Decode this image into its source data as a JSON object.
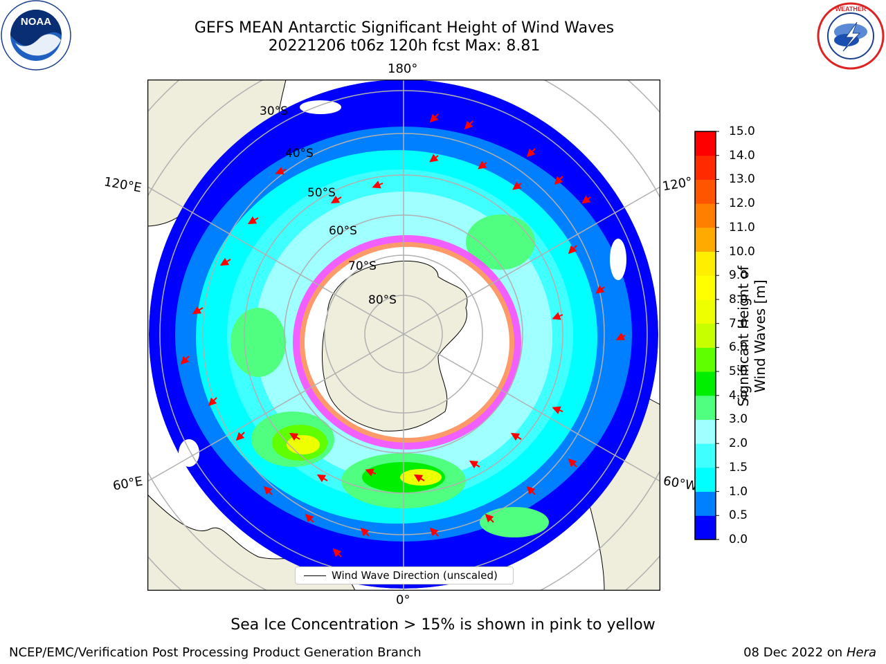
{
  "header": {
    "title_line1": "GEFS MEAN Antarctic Significant Height of Wind Waves",
    "title_line2": "20221206 t06z 120h fcst   Max: 8.81"
  },
  "logos": {
    "left": {
      "text": "NOAA",
      "ring_text": "NATIONAL OCEANIC AND ATMOSPHERIC ADMINISTRATION · U.S. DEPARTMENT OF COMMERCE"
    },
    "right": {
      "ring_text": "NATIONAL WEATHER SERVICE"
    }
  },
  "map": {
    "longitude_labels": {
      "top": "180°",
      "bottom": "0°",
      "upper_left": "120°E",
      "upper_right": "120°",
      "lower_left": "60°E",
      "lower_right": "60°W"
    },
    "latitude_labels": [
      "30°S",
      "40°S",
      "50°S",
      "60°S",
      "70°S",
      "80°S"
    ],
    "legend": "Wind Wave Direction (unscaled)",
    "colors": {
      "ocean_deep": "#0000ff",
      "land": "#efeddc",
      "sea_ice": "#ffffff",
      "ice_edge_pink": "#ff44ff",
      "ice_edge_orange": "#ffaa44",
      "arrow": "#ff0000",
      "graticule": "#b0b0b0"
    }
  },
  "colorbar": {
    "title": "Significant Height of Wind Waves [m]",
    "ticks": [
      "0.0",
      "0.5",
      "1.0",
      "1.5",
      "2.0",
      "3.0",
      "4.0",
      "5.0",
      "6.0",
      "7.0",
      "8.0",
      "9.0",
      "10.0",
      "11.0",
      "12.0",
      "13.0",
      "14.0",
      "15.0"
    ],
    "colors": [
      "#0000ff",
      "#0080ff",
      "#00ffff",
      "#40ffff",
      "#a0ffff",
      "#50ff80",
      "#00ee00",
      "#60ff00",
      "#c8ff00",
      "#eeff00",
      "#ffff00",
      "#ffee00",
      "#ffaa00",
      "#ff8000",
      "#ff5500",
      "#ff2a00",
      "#ff0000"
    ]
  },
  "footer": {
    "note": "Sea Ice Concentration > 15% is shown in pink to yellow",
    "credit": "NCEP/EMC/Verification Post Processing Product Generation Branch",
    "date": "08 Dec 2022 on",
    "host": "Hera"
  }
}
